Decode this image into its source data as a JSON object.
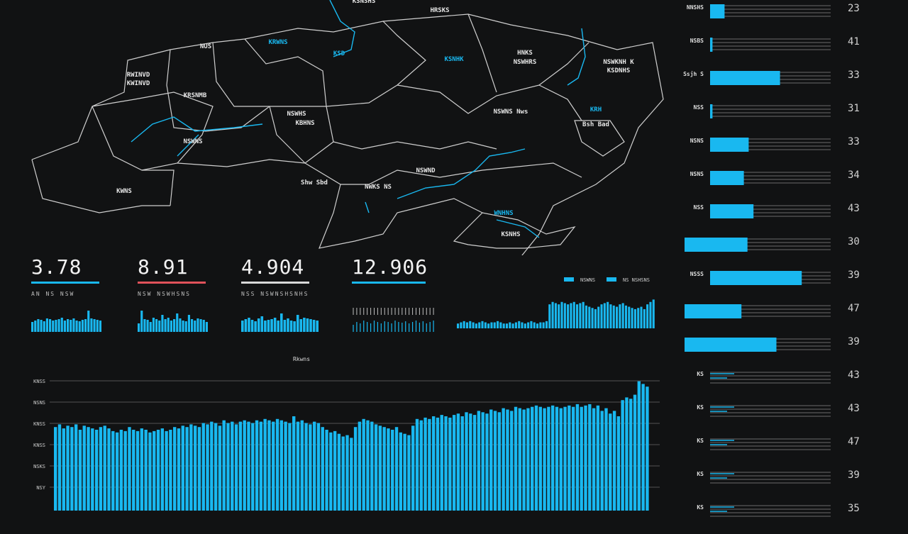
{
  "map": {
    "labels": [
      {
        "text": "RWINVD",
        "cyan": false
      },
      {
        "text": "KWINVD",
        "cyan": false
      },
      {
        "text": "KRSNMB",
        "cyan": false
      },
      {
        "text": "NUS",
        "cyan": false
      },
      {
        "text": "KRWNS",
        "cyan": true
      },
      {
        "text": "KSD",
        "cyan": true
      },
      {
        "text": "KSNHK",
        "cyan": true
      },
      {
        "text": "NSWHS",
        "cyan": false
      },
      {
        "text": "KBHNS",
        "cyan": false
      },
      {
        "text": "HNKS",
        "cyan": false
      },
      {
        "text": "NSWHRS",
        "cyan": false
      },
      {
        "text": "KWNS",
        "cyan": false
      },
      {
        "text": "NSWNS",
        "cyan": false
      },
      {
        "text": "NSWKNH K",
        "cyan": false
      },
      {
        "text": "KSDNHS",
        "cyan": false
      },
      {
        "text": "KRH",
        "cyan": true
      },
      {
        "text": "Bsh Bad",
        "cyan": false
      },
      {
        "text": "NSWNS Nws",
        "cyan": false
      },
      {
        "text": "NSWND",
        "cyan": false
      },
      {
        "text": "Shw Sbd",
        "cyan": false
      },
      {
        "text": "NWKS NS",
        "cyan": false
      },
      {
        "text": "WNHNS",
        "cyan": true
      },
      {
        "text": "KSNHS",
        "cyan": false
      },
      {
        "text": "KSNSHS",
        "cyan": false
      },
      {
        "text": "HRSKS",
        "cyan": false
      }
    ]
  },
  "kpis": [
    {
      "value": "3.78",
      "sub": "AN  NS  NSW",
      "accent": "#19b8f0"
    },
    {
      "value": "8.91",
      "sub": "NSW NSWHSNS",
      "accent": "#e0525a"
    },
    {
      "value": "4.904",
      "sub": "NSS NSWNSHSNHS",
      "accent": "#d8d8d8"
    },
    {
      "value": "12.906",
      "sub": "",
      "accent": "#19b8f0"
    }
  ],
  "trend": {
    "legend": [
      {
        "swatch": "SB",
        "text": "NSWNS"
      },
      {
        "swatch": "SB",
        "text": "NS NSHSNS"
      }
    ],
    "values": [
      4,
      5,
      6,
      5,
      6,
      5,
      4,
      5,
      6,
      5,
      4,
      5,
      5,
      6,
      5,
      4,
      4,
      5,
      4,
      5,
      6,
      5,
      4,
      5,
      6,
      5,
      4,
      5,
      5,
      6,
      20,
      22,
      21,
      20,
      22,
      21,
      20,
      21,
      22,
      20,
      21,
      22,
      19,
      18,
      17,
      16,
      18,
      20,
      21,
      22,
      20,
      19,
      18,
      20,
      21,
      19,
      18,
      17,
      16,
      17,
      18,
      16,
      20,
      22,
      24
    ]
  },
  "main_chart": {
    "title": "Rkwns",
    "y_labels": [
      "KNSS",
      "NSNS",
      "KNSS",
      "KNSS",
      "NSKS",
      "NSY"
    ],
    "values": [
      62,
      64,
      61,
      63,
      62,
      64,
      60,
      63,
      62,
      61,
      60,
      62,
      63,
      61,
      59,
      58,
      60,
      59,
      62,
      60,
      59,
      61,
      60,
      58,
      59,
      60,
      61,
      59,
      60,
      62,
      61,
      63,
      62,
      64,
      63,
      62,
      65,
      64,
      66,
      65,
      63,
      67,
      65,
      66,
      64,
      66,
      67,
      66,
      65,
      67,
      66,
      68,
      67,
      66,
      68,
      67,
      66,
      65,
      70,
      66,
      67,
      65,
      64,
      66,
      65,
      62,
      60,
      58,
      59,
      57,
      55,
      56,
      54,
      62,
      66,
      68,
      67,
      66,
      64,
      63,
      62,
      61,
      60,
      62,
      58,
      57,
      56,
      63,
      68,
      67,
      69,
      68,
      70,
      69,
      71,
      70,
      69,
      71,
      72,
      70,
      73,
      72,
      71,
      74,
      73,
      72,
      75,
      74,
      73,
      76,
      75,
      74,
      77,
      76,
      75,
      76,
      77,
      78,
      77,
      76,
      77,
      78,
      77,
      76,
      77,
      78,
      77,
      79,
      77,
      78,
      79,
      76,
      78,
      74,
      76,
      72,
      74,
      70,
      82,
      84,
      83,
      86,
      96,
      94,
      92
    ]
  },
  "right_bars": [
    {
      "label": "NNSHS",
      "fill": 0.12,
      "value": "23"
    },
    {
      "label": "NSBS",
      "fill": 0.02,
      "value": "41"
    },
    {
      "label": "Ssjh S",
      "fill": 0.58,
      "value": "33"
    },
    {
      "label": "NSS",
      "fill": 0.02,
      "value": "31"
    },
    {
      "label": "NSNS",
      "fill": 0.32,
      "value": "33"
    },
    {
      "label": "NSNS",
      "fill": 0.28,
      "value": "34"
    },
    {
      "label": "NSS",
      "fill": 0.36,
      "value": "43"
    },
    {
      "label": "",
      "fill": 0.31,
      "value": "30"
    },
    {
      "label": "NSSS",
      "fill": 0.76,
      "value": "39"
    },
    {
      "label": "",
      "fill": 0.26,
      "value": "47"
    },
    {
      "label": "",
      "fill": 0.55,
      "value": "39"
    },
    {
      "label": "KS",
      "fill": 0.0,
      "value": "43"
    },
    {
      "label": "KS",
      "fill": 0.0,
      "value": "43"
    },
    {
      "label": "KS",
      "fill": 0.0,
      "value": "47"
    },
    {
      "label": "KS",
      "fill": 0.0,
      "value": "39"
    },
    {
      "label": "KS",
      "fill": 0.0,
      "value": "35"
    }
  ],
  "colors": {
    "accent": "#19b8f0",
    "background": "#111213",
    "grid": "#6a6a6a"
  }
}
